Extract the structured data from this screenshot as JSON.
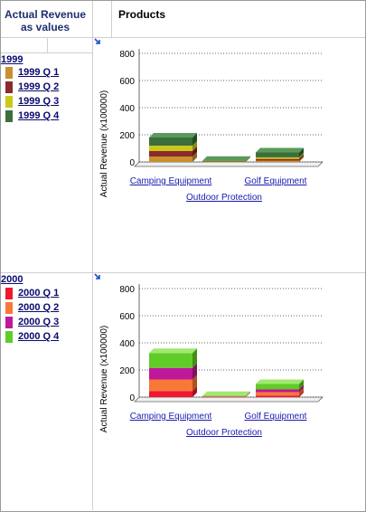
{
  "header": {
    "corner_title": "Actual Revenue as values",
    "products_label": "Products"
  },
  "panels": [
    {
      "year": "1999",
      "legend": [
        {
          "label": "1999 Q 1",
          "color": "#c8902e"
        },
        {
          "label": "1999 Q 2",
          "color": "#8b2a2a"
        },
        {
          "label": "1999 Q 3",
          "color": "#c8c81e"
        },
        {
          "label": "1999 Q 4",
          "color": "#3c6e3c"
        }
      ]
    },
    {
      "year": "2000",
      "legend": [
        {
          "label": "2000 Q 1",
          "color": "#f01830"
        },
        {
          "label": "2000 Q 2",
          "color": "#f87838"
        },
        {
          "label": "2000 Q 3",
          "color": "#c0189a"
        },
        {
          "label": "2000 Q 4",
          "color": "#60cc28"
        }
      ]
    }
  ],
  "chart_data": [
    {
      "type": "bar",
      "stacked": true,
      "three_d": true,
      "categories": [
        "Camping Equipment",
        "Outdoor Protection",
        "Golf Equipment"
      ],
      "ylabel": "Actual Revenue (x100000)",
      "ylim": [
        0,
        800
      ],
      "yticks": [
        "800",
        "600",
        "400",
        "200",
        "0"
      ],
      "grid": true,
      "series": [
        {
          "name": "1999 Q 1",
          "color": "#c8902e",
          "top_color": "#e0b060",
          "side_color": "#8a6020",
          "values": [
            40,
            2,
            10
          ]
        },
        {
          "name": "1999 Q 2",
          "color": "#8b2a2a",
          "top_color": "#b05050",
          "side_color": "#5a1818",
          "values": [
            40,
            2,
            12
          ]
        },
        {
          "name": "1999 Q 3",
          "color": "#c8c81e",
          "top_color": "#e0e070",
          "side_color": "#8a8a10",
          "values": [
            40,
            2,
            12
          ]
        },
        {
          "name": "1999 Q 4",
          "color": "#3c6e3c",
          "top_color": "#5a9a5a",
          "side_color": "#244a24",
          "values": [
            60,
            2,
            36
          ]
        }
      ]
    },
    {
      "type": "bar",
      "stacked": true,
      "three_d": true,
      "categories": [
        "Camping Equipment",
        "Outdoor Protection",
        "Golf Equipment"
      ],
      "ylabel": "Actual Revenue (x100000)",
      "ylim": [
        0,
        800
      ],
      "yticks": [
        "800",
        "600",
        "400",
        "200",
        "0"
      ],
      "grid": true,
      "series": [
        {
          "name": "2000 Q 1",
          "color": "#f01830",
          "top_color": "#ff6070",
          "side_color": "#a01020",
          "values": [
            45,
            2,
            12
          ]
        },
        {
          "name": "2000 Q 2",
          "color": "#f87838",
          "top_color": "#ffb080",
          "side_color": "#b05020",
          "values": [
            85,
            2,
            25
          ]
        },
        {
          "name": "2000 Q 3",
          "color": "#c0189a",
          "top_color": "#e060c0",
          "side_color": "#801060",
          "values": [
            85,
            2,
            20
          ]
        },
        {
          "name": "2000 Q 4",
          "color": "#60cc28",
          "top_color": "#a0e870",
          "side_color": "#409018",
          "values": [
            110,
            2,
            40
          ]
        }
      ]
    }
  ]
}
